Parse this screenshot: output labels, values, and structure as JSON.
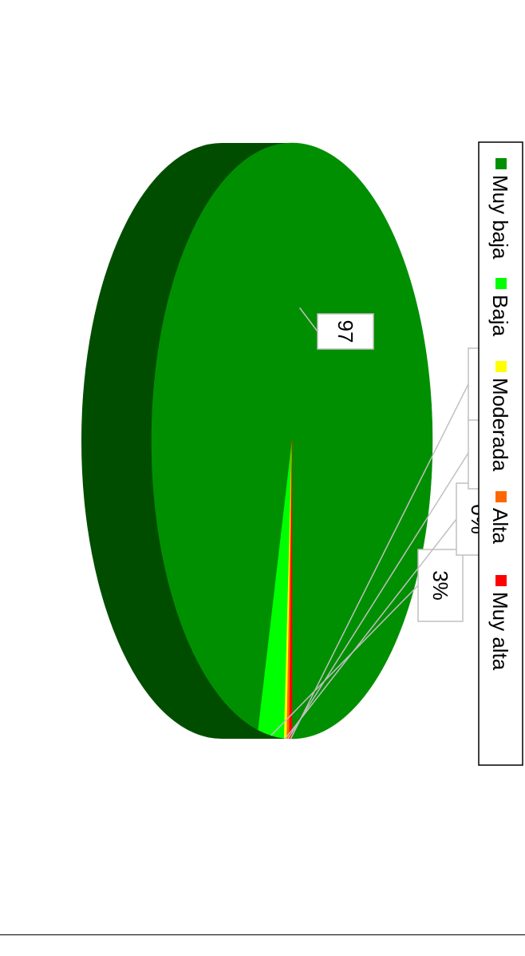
{
  "chart_data": {
    "type": "pie",
    "three_d": true,
    "orientation": "rotated 90 degrees clockwise",
    "categories": [
      "Muy baja",
      "Baja",
      "Moderada",
      "Alta",
      "Muy alta"
    ],
    "values": [
      97,
      3,
      0,
      0,
      0
    ],
    "data_labels": [
      "97",
      "3%",
      "0%",
      "0%",
      "0%"
    ],
    "colors": [
      "#008f00",
      "#00ff00",
      "#ffff00",
      "#ff6600",
      "#ff0000"
    ],
    "legend": {
      "placement": "bottom",
      "entries": [
        "Muy baja",
        "Baja",
        "Moderada",
        "Alta",
        "Muy alta"
      ]
    }
  }
}
